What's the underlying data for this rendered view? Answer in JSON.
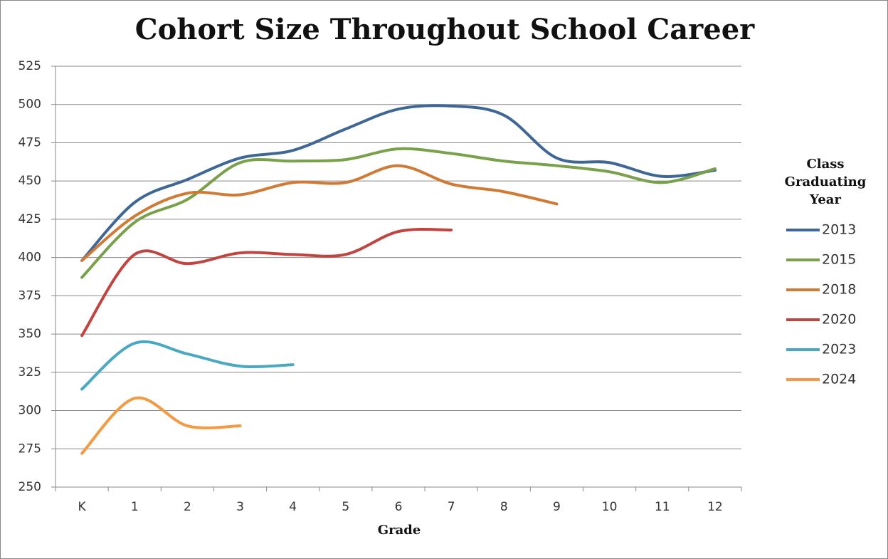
{
  "chart_data": {
    "type": "line",
    "title": "Cohort Size Throughout School Career",
    "x_label": "Grade",
    "legend_title": "Class Graduating Year",
    "legend_position": "right",
    "grid": true,
    "smooth": true,
    "categories": [
      "K",
      "1",
      "2",
      "3",
      "4",
      "5",
      "6",
      "7",
      "8",
      "9",
      "10",
      "11",
      "12"
    ],
    "ylim": [
      250,
      525
    ],
    "yticks": [
      250,
      275,
      300,
      325,
      350,
      375,
      400,
      425,
      450,
      475,
      500,
      525
    ],
    "series": [
      {
        "name": "2013",
        "color": "#3f6796",
        "values": [
          398,
          436,
          451,
          465,
          470,
          484,
          497,
          499,
          493,
          465,
          462,
          453,
          457
        ]
      },
      {
        "name": "2015",
        "color": "#79a04a",
        "values": [
          387,
          423,
          438,
          462,
          463,
          464,
          471,
          468,
          463,
          460,
          456,
          449,
          458
        ]
      },
      {
        "name": "2018",
        "color": "#d07a35",
        "values": [
          398,
          427,
          442,
          441,
          449,
          449,
          460,
          448,
          443,
          435,
          null,
          null,
          null
        ]
      },
      {
        "name": "2020",
        "color": "#c0443f",
        "values": [
          349,
          402,
          396,
          403,
          402,
          402,
          417,
          418,
          null,
          null,
          null,
          null,
          null
        ]
      },
      {
        "name": "2023",
        "color": "#4aa8c2",
        "values": [
          314,
          344,
          337,
          329,
          330,
          null,
          null,
          null,
          null,
          null,
          null,
          null,
          null
        ]
      },
      {
        "name": "2024",
        "color": "#f39a43",
        "values": [
          272,
          308,
          290,
          290,
          null,
          null,
          null,
          null,
          null,
          null,
          null,
          null,
          null
        ]
      }
    ]
  }
}
